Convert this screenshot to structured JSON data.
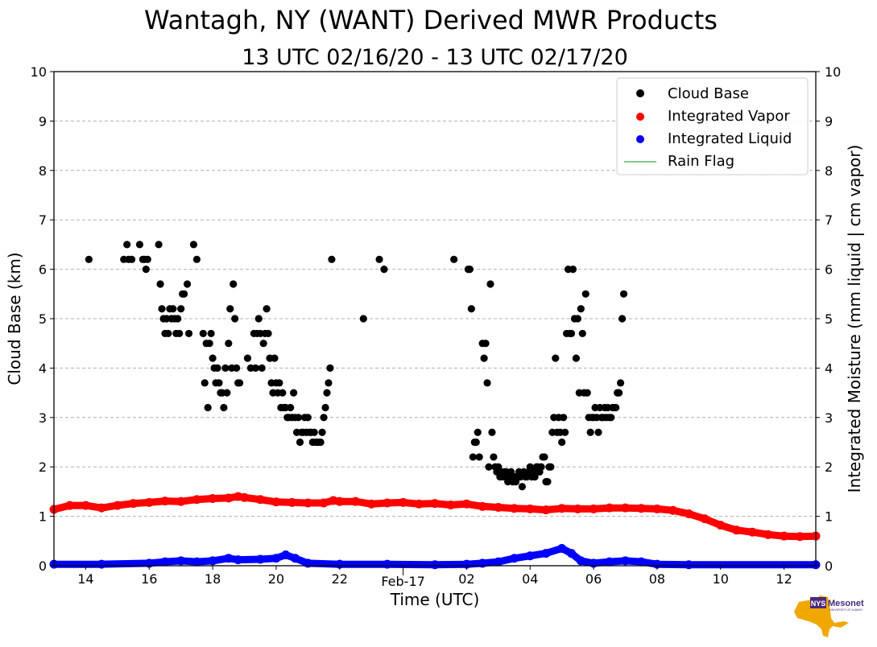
{
  "chart_data": {
    "type": "scatter",
    "title": "Wantagh, NY (WANT) Derived MWR Products",
    "subtitle": "13 UTC 02/16/20 - 13 UTC 02/17/20",
    "xlabel": "Time (UTC)",
    "ylabel_left": "Cloud Base (km)",
    "ylabel_right": "Integrated Moisture (mm liquid | cm vapor)",
    "xlim": [
      13,
      37
    ],
    "ylim": [
      0,
      10
    ],
    "yticks": [
      0,
      1,
      2,
      3,
      4,
      5,
      6,
      7,
      8,
      9,
      10
    ],
    "xticks": [
      {
        "x": 14,
        "label": "14"
      },
      {
        "x": 16,
        "label": "16"
      },
      {
        "x": 18,
        "label": "18"
      },
      {
        "x": 20,
        "label": "20"
      },
      {
        "x": 22,
        "label": "22"
      },
      {
        "x": 24,
        "label": "Feb-17"
      },
      {
        "x": 26,
        "label": "02"
      },
      {
        "x": 28,
        "label": "04"
      },
      {
        "x": 30,
        "label": "06"
      },
      {
        "x": 32,
        "label": "08"
      },
      {
        "x": 34,
        "label": "10"
      },
      {
        "x": 36,
        "label": "12"
      }
    ],
    "grid": true,
    "legend_position": "top-right",
    "legend": [
      "Cloud Base",
      "Integrated Vapor",
      "Integrated Liquid",
      "Rain Flag"
    ],
    "colors": {
      "cloud_base": "#000000",
      "vapor": "#ff0000",
      "liquid": "#0000ff",
      "rain_flag": "#5cb85c"
    },
    "series": [
      {
        "name": "Cloud Base",
        "kind": "scatter",
        "points": [
          [
            14.1,
            6.2
          ],
          [
            15.2,
            6.2
          ],
          [
            15.3,
            6.5
          ],
          [
            15.35,
            6.2
          ],
          [
            15.45,
            6.2
          ],
          [
            15.7,
            6.5
          ],
          [
            15.8,
            6.2
          ],
          [
            15.85,
            6.2
          ],
          [
            15.9,
            6.0
          ],
          [
            15.95,
            6.2
          ],
          [
            16.3,
            6.5
          ],
          [
            16.35,
            5.7
          ],
          [
            16.4,
            5.2
          ],
          [
            16.45,
            5.0
          ],
          [
            16.5,
            4.7
          ],
          [
            16.55,
            5.0
          ],
          [
            16.6,
            4.7
          ],
          [
            16.65,
            5.2
          ],
          [
            16.7,
            5.0
          ],
          [
            16.75,
            5.2
          ],
          [
            16.8,
            5.0
          ],
          [
            16.85,
            4.7
          ],
          [
            16.9,
            5.0
          ],
          [
            16.95,
            4.7
          ],
          [
            17.0,
            5.2
          ],
          [
            17.05,
            5.5
          ],
          [
            17.1,
            5.5
          ],
          [
            17.2,
            5.7
          ],
          [
            17.25,
            4.7
          ],
          [
            17.4,
            6.5
          ],
          [
            17.5,
            6.2
          ],
          [
            17.7,
            4.7
          ],
          [
            17.75,
            3.7
          ],
          [
            17.8,
            4.5
          ],
          [
            17.85,
            3.2
          ],
          [
            17.9,
            4.5
          ],
          [
            17.95,
            4.7
          ],
          [
            18.0,
            4.2
          ],
          [
            18.05,
            4.0
          ],
          [
            18.1,
            3.7
          ],
          [
            18.15,
            4.0
          ],
          [
            18.2,
            3.7
          ],
          [
            18.25,
            3.5
          ],
          [
            18.3,
            3.5
          ],
          [
            18.35,
            3.2
          ],
          [
            18.4,
            4.0
          ],
          [
            18.45,
            3.5
          ],
          [
            18.5,
            4.5
          ],
          [
            18.55,
            5.2
          ],
          [
            18.6,
            4.0
          ],
          [
            18.65,
            5.7
          ],
          [
            18.7,
            5.0
          ],
          [
            18.75,
            4.0
          ],
          [
            18.8,
            3.7
          ],
          [
            18.85,
            3.7
          ],
          [
            19.1,
            4.2
          ],
          [
            19.2,
            4.0
          ],
          [
            19.3,
            4.7
          ],
          [
            19.35,
            4.0
          ],
          [
            19.4,
            4.7
          ],
          [
            19.45,
            5.0
          ],
          [
            19.5,
            4.7
          ],
          [
            19.55,
            4.0
          ],
          [
            19.6,
            4.5
          ],
          [
            19.65,
            4.7
          ],
          [
            19.7,
            5.2
          ],
          [
            19.75,
            4.7
          ],
          [
            19.8,
            4.2
          ],
          [
            19.85,
            3.7
          ],
          [
            19.9,
            3.5
          ],
          [
            19.95,
            4.2
          ],
          [
            20.0,
            3.7
          ],
          [
            20.05,
            3.5
          ],
          [
            20.1,
            3.7
          ],
          [
            20.15,
            3.2
          ],
          [
            20.2,
            3.5
          ],
          [
            20.25,
            3.2
          ],
          [
            20.3,
            3.2
          ],
          [
            20.35,
            3.0
          ],
          [
            20.4,
            3.0
          ],
          [
            20.45,
            3.2
          ],
          [
            20.5,
            3.0
          ],
          [
            20.55,
            3.5
          ],
          [
            20.6,
            3.0
          ],
          [
            20.65,
            2.7
          ],
          [
            20.7,
            3.0
          ],
          [
            20.75,
            2.5
          ],
          [
            20.8,
            2.7
          ],
          [
            20.85,
            2.7
          ],
          [
            20.9,
            3.0
          ],
          [
            20.95,
            2.7
          ],
          [
            21.0,
            3.0
          ],
          [
            21.05,
            2.7
          ],
          [
            21.1,
            2.7
          ],
          [
            21.15,
            2.5
          ],
          [
            21.2,
            2.7
          ],
          [
            21.25,
            2.5
          ],
          [
            21.3,
            2.5
          ],
          [
            21.35,
            2.5
          ],
          [
            21.4,
            2.5
          ],
          [
            21.45,
            2.7
          ],
          [
            21.5,
            3.0
          ],
          [
            21.55,
            3.2
          ],
          [
            21.6,
            3.5
          ],
          [
            21.65,
            3.7
          ],
          [
            21.7,
            4.0
          ],
          [
            21.75,
            6.2
          ],
          [
            22.75,
            5.0
          ],
          [
            23.25,
            6.2
          ],
          [
            23.4,
            6.0
          ],
          [
            25.6,
            6.2
          ],
          [
            26.05,
            6.0
          ],
          [
            26.1,
            6.0
          ],
          [
            26.15,
            5.2
          ],
          [
            26.2,
            2.2
          ],
          [
            26.25,
            2.5
          ],
          [
            26.3,
            2.5
          ],
          [
            26.35,
            2.7
          ],
          [
            26.4,
            2.2
          ],
          [
            26.5,
            4.5
          ],
          [
            26.55,
            4.2
          ],
          [
            26.6,
            4.5
          ],
          [
            26.65,
            3.7
          ],
          [
            26.7,
            2.0
          ],
          [
            26.75,
            5.7
          ],
          [
            26.8,
            2.7
          ],
          [
            26.85,
            2.2
          ],
          [
            26.9,
            2.0
          ],
          [
            26.95,
            1.9
          ],
          [
            27.0,
            2.0
          ],
          [
            27.05,
            1.8
          ],
          [
            27.1,
            1.9
          ],
          [
            27.15,
            1.8
          ],
          [
            27.2,
            1.9
          ],
          [
            27.25,
            1.9
          ],
          [
            27.3,
            1.7
          ],
          [
            27.35,
            1.8
          ],
          [
            27.4,
            1.9
          ],
          [
            27.45,
            1.7
          ],
          [
            27.5,
            1.8
          ],
          [
            27.55,
            1.7
          ],
          [
            27.6,
            1.8
          ],
          [
            27.65,
            1.9
          ],
          [
            27.7,
            1.8
          ],
          [
            27.75,
            1.6
          ],
          [
            27.8,
            1.9
          ],
          [
            27.85,
            1.8
          ],
          [
            27.9,
            1.8
          ],
          [
            27.95,
            1.9
          ],
          [
            28.0,
            2.0
          ],
          [
            28.05,
            1.8
          ],
          [
            28.1,
            1.9
          ],
          [
            28.15,
            1.8
          ],
          [
            28.2,
            2.0
          ],
          [
            28.25,
            2.0
          ],
          [
            28.3,
            1.9
          ],
          [
            28.35,
            2.0
          ],
          [
            28.4,
            2.2
          ],
          [
            28.45,
            2.2
          ],
          [
            28.5,
            1.7
          ],
          [
            28.55,
            1.7
          ],
          [
            28.6,
            2.0
          ],
          [
            28.65,
            2.0
          ],
          [
            28.7,
            2.7
          ],
          [
            28.75,
            3.0
          ],
          [
            28.8,
            4.2
          ],
          [
            28.85,
            2.7
          ],
          [
            28.9,
            3.0
          ],
          [
            28.95,
            2.7
          ],
          [
            29.0,
            2.5
          ],
          [
            29.05,
            3.0
          ],
          [
            29.1,
            2.7
          ],
          [
            29.15,
            4.7
          ],
          [
            29.2,
            6.0
          ],
          [
            29.25,
            4.7
          ],
          [
            29.3,
            4.7
          ],
          [
            29.35,
            6.0
          ],
          [
            29.4,
            5.0
          ],
          [
            29.45,
            4.2
          ],
          [
            29.5,
            5.0
          ],
          [
            29.55,
            3.5
          ],
          [
            29.6,
            5.2
          ],
          [
            29.65,
            4.7
          ],
          [
            29.7,
            3.5
          ],
          [
            29.75,
            5.5
          ],
          [
            29.8,
            3.5
          ],
          [
            29.85,
            3.0
          ],
          [
            29.9,
            2.7
          ],
          [
            29.95,
            3.0
          ],
          [
            30.0,
            3.0
          ],
          [
            30.05,
            3.2
          ],
          [
            30.1,
            3.0
          ],
          [
            30.15,
            2.7
          ],
          [
            30.2,
            3.2
          ],
          [
            30.25,
            3.0
          ],
          [
            30.3,
            3.0
          ],
          [
            30.35,
            3.2
          ],
          [
            30.4,
            3.0
          ],
          [
            30.45,
            3.2
          ],
          [
            30.5,
            3.0
          ],
          [
            30.55,
            3.0
          ],
          [
            30.6,
            3.2
          ],
          [
            30.65,
            3.2
          ],
          [
            30.7,
            3.2
          ],
          [
            30.75,
            3.5
          ],
          [
            30.8,
            3.5
          ],
          [
            30.85,
            3.7
          ],
          [
            30.9,
            5.0
          ],
          [
            30.95,
            5.5
          ]
        ]
      },
      {
        "name": "Integrated Vapor",
        "kind": "band",
        "points": [
          [
            13.0,
            1.14
          ],
          [
            13.5,
            1.22
          ],
          [
            14.0,
            1.22
          ],
          [
            14.5,
            1.17
          ],
          [
            15.0,
            1.22
          ],
          [
            15.5,
            1.26
          ],
          [
            16.0,
            1.28
          ],
          [
            16.5,
            1.31
          ],
          [
            17.0,
            1.3
          ],
          [
            17.5,
            1.34
          ],
          [
            18.0,
            1.36
          ],
          [
            18.5,
            1.37
          ],
          [
            18.8,
            1.4
          ],
          [
            19.0,
            1.38
          ],
          [
            19.5,
            1.34
          ],
          [
            20.0,
            1.29
          ],
          [
            20.5,
            1.28
          ],
          [
            21.0,
            1.27
          ],
          [
            21.5,
            1.27
          ],
          [
            21.8,
            1.32
          ],
          [
            22.0,
            1.3
          ],
          [
            22.5,
            1.3
          ],
          [
            23.0,
            1.25
          ],
          [
            23.5,
            1.27
          ],
          [
            24.0,
            1.28
          ],
          [
            24.5,
            1.25
          ],
          [
            25.0,
            1.26
          ],
          [
            25.5,
            1.23
          ],
          [
            26.0,
            1.25
          ],
          [
            26.5,
            1.2
          ],
          [
            27.0,
            1.18
          ],
          [
            27.5,
            1.16
          ],
          [
            28.0,
            1.15
          ],
          [
            28.5,
            1.13
          ],
          [
            29.0,
            1.16
          ],
          [
            29.5,
            1.15
          ],
          [
            30.0,
            1.15
          ],
          [
            30.5,
            1.17
          ],
          [
            31.0,
            1.17
          ],
          [
            31.5,
            1.16
          ],
          [
            32.0,
            1.15
          ],
          [
            32.5,
            1.12
          ],
          [
            33.0,
            1.05
          ],
          [
            33.5,
            0.95
          ],
          [
            34.0,
            0.82
          ],
          [
            34.5,
            0.72
          ],
          [
            35.0,
            0.68
          ],
          [
            35.5,
            0.63
          ],
          [
            36.0,
            0.6
          ],
          [
            36.5,
            0.59
          ],
          [
            37.0,
            0.6
          ]
        ]
      },
      {
        "name": "Integrated Liquid",
        "kind": "band",
        "points": [
          [
            13.0,
            0.03
          ],
          [
            14.5,
            0.03
          ],
          [
            16.0,
            0.05
          ],
          [
            16.5,
            0.08
          ],
          [
            17.0,
            0.1
          ],
          [
            17.5,
            0.08
          ],
          [
            18.0,
            0.1
          ],
          [
            18.5,
            0.15
          ],
          [
            18.8,
            0.12
          ],
          [
            19.5,
            0.13
          ],
          [
            20.0,
            0.15
          ],
          [
            20.3,
            0.22
          ],
          [
            20.6,
            0.15
          ],
          [
            21.0,
            0.05
          ],
          [
            22.0,
            0.03
          ],
          [
            23.5,
            0.03
          ],
          [
            25.0,
            0.02
          ],
          [
            26.0,
            0.03
          ],
          [
            26.5,
            0.05
          ],
          [
            27.0,
            0.08
          ],
          [
            27.5,
            0.15
          ],
          [
            28.0,
            0.2
          ],
          [
            28.5,
            0.25
          ],
          [
            29.0,
            0.35
          ],
          [
            29.3,
            0.25
          ],
          [
            29.6,
            0.1
          ],
          [
            30.0,
            0.05
          ],
          [
            30.5,
            0.08
          ],
          [
            31.0,
            0.1
          ],
          [
            31.5,
            0.08
          ],
          [
            32.0,
            0.03
          ],
          [
            33.0,
            0.02
          ],
          [
            37.0,
            0.02
          ]
        ]
      }
    ]
  },
  "logo": {
    "text": "Mesonet",
    "badge": "NYS",
    "tagline": "UNIVERSITY AT ALBANY",
    "state_color": "#f0a800",
    "text_color": "#4b2a7a"
  }
}
